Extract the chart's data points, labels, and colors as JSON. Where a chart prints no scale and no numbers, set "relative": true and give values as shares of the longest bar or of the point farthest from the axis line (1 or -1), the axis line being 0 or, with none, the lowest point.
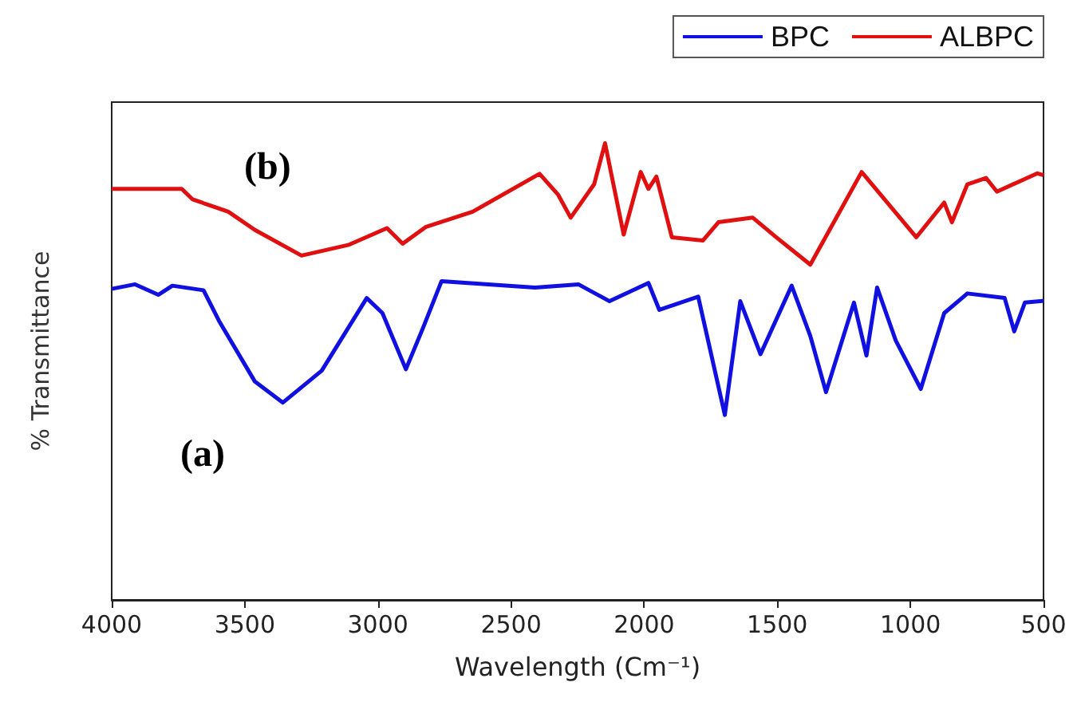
{
  "chart_data": {
    "type": "line",
    "relative": true,
    "xlabel": "Wavelength (Cm⁻¹)",
    "ylabel": "% Transmittance",
    "annotations": [
      "(a)",
      "(b)"
    ],
    "xlim": [
      4000,
      500
    ],
    "xticks": [
      4000,
      3500,
      3000,
      2500,
      2000,
      1500,
      1000,
      500
    ],
    "tick_labels": "x",
    "legend": "top right",
    "grid": false,
    "marker": "none",
    "line_style": "solid",
    "series": [
      {
        "name": "BPC",
        "color": "#1010e0",
        "x": [
          4000,
          3912,
          3825,
          3772,
          3655,
          3597,
          3462,
          3357,
          3211,
          3042,
          2983,
          2895,
          2831,
          2761,
          2410,
          2247,
          2206,
          2130,
          1984,
          1943,
          1797,
          1697,
          1639,
          1563,
          1446,
          1376,
          1317,
          1212,
          1165,
          1125,
          1055,
          961,
          873,
          786,
          646,
          610,
          570,
          512,
          500
        ],
        "values": [
          0.681,
          0.691,
          0.668,
          0.688,
          0.678,
          0.611,
          0.478,
          0.432,
          0.502,
          0.661,
          0.628,
          0.505,
          0.595,
          0.698,
          0.684,
          0.691,
          0.678,
          0.654,
          0.694,
          0.635,
          0.664,
          0.405,
          0.654,
          0.538,
          0.688,
          0.578,
          0.455,
          0.651,
          0.535,
          0.684,
          0.568,
          0.462,
          0.628,
          0.671,
          0.661,
          0.588,
          0.651,
          0.654,
          0.655
        ]
      },
      {
        "name": "ALBPC",
        "color": "#e01010",
        "x": [
          4000,
          3737,
          3696,
          3562,
          3462,
          3287,
          3112,
          2966,
          2907,
          2819,
          2644,
          2393,
          2323,
          2276,
          2188,
          2147,
          2077,
          2013,
          1984,
          1954,
          1896,
          1779,
          1721,
          1592,
          1504,
          1376,
          1183,
          978,
          873,
          844,
          786,
          716,
          675,
          523,
          500
        ],
        "values": [
          0.9,
          0.9,
          0.877,
          0.85,
          0.81,
          0.754,
          0.777,
          0.814,
          0.78,
          0.817,
          0.85,
          0.933,
          0.887,
          0.837,
          0.91,
          1.0,
          0.8,
          0.937,
          0.9,
          0.927,
          0.794,
          0.787,
          0.827,
          0.837,
          0.794,
          0.734,
          0.937,
          0.794,
          0.87,
          0.827,
          0.91,
          0.924,
          0.894,
          0.934,
          0.93
        ]
      }
    ]
  }
}
